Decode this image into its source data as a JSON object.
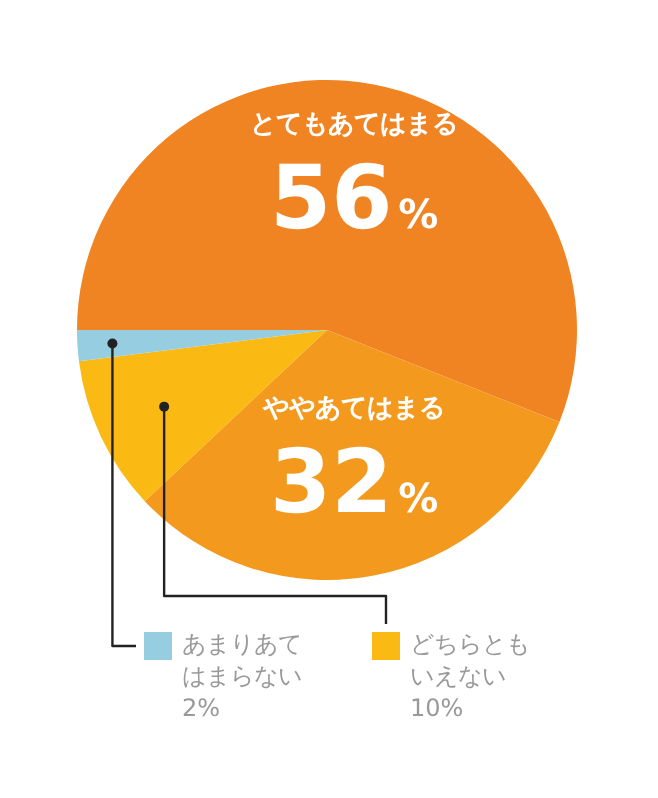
{
  "chart_data": {
    "type": "pie",
    "categories": [
      "とてもあてはまる",
      "ややあてはまる",
      "どちらともいえない",
      "あまりあてはまらない"
    ],
    "legend": "bottom",
    "values": [
      56,
      32,
      10,
      2
    ],
    "colors": [
      "#f08423",
      "#f39a1e",
      "#fbb914",
      "#97cde0"
    ],
    "value_labels": [
      "56%",
      "32%",
      "10%",
      "2%"
    ]
  }
}
